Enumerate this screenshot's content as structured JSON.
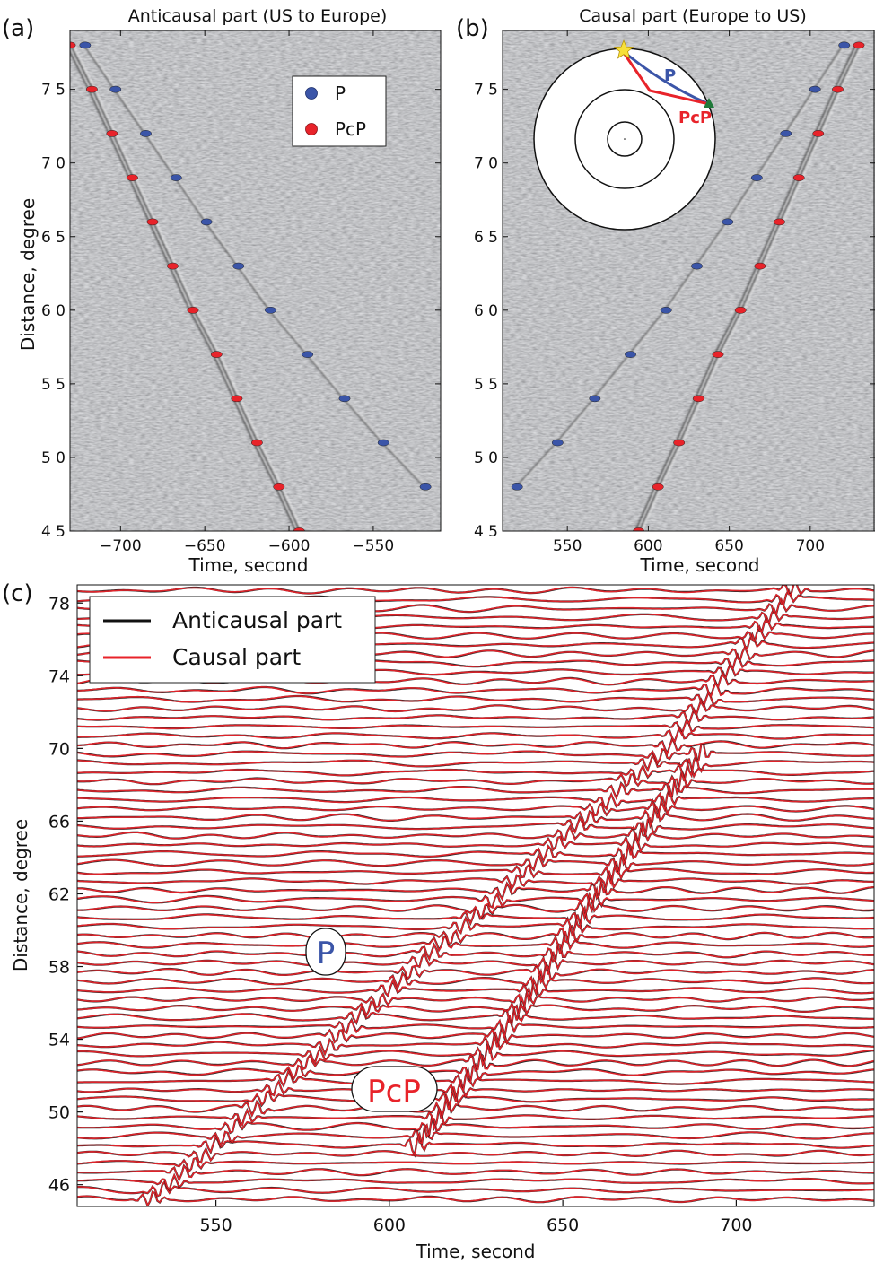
{
  "chart_data": [
    {
      "panel_label": "(a)",
      "type": "scatter",
      "title": "Anticausal part (US to Europe)",
      "xlabel": "Time, second",
      "ylabel": "Distance, degree",
      "xlim": [
        -730,
        -510
      ],
      "ylim": [
        45,
        79
      ],
      "xticks": [
        "-700",
        "-650",
        "-600",
        "-550"
      ],
      "yticks": [
        "45",
        "50",
        "55",
        "60",
        "65",
        "70",
        "75"
      ],
      "background": "grayscale noise image with two oblique phase arrivals",
      "legend": {
        "position": "top-right",
        "entries": [
          "P",
          "PcP"
        ]
      },
      "series": [
        {
          "name": "P",
          "color": "#3b55a8",
          "points": [
            [
              -721,
              78
            ],
            [
              -703,
              75
            ],
            [
              -685,
              72
            ],
            [
              -667,
              69
            ],
            [
              -649,
              66
            ],
            [
              -630,
              63
            ],
            [
              -611,
              60
            ],
            [
              -589,
              57
            ],
            [
              -567,
              54
            ],
            [
              -544,
              51
            ],
            [
              -519,
              48
            ]
          ]
        },
        {
          "name": "PcP",
          "color": "#e8232a",
          "points": [
            [
              -730,
              78
            ],
            [
              -717,
              75
            ],
            [
              -705,
              72
            ],
            [
              -693,
              69
            ],
            [
              -681,
              66
            ],
            [
              -669,
              63
            ],
            [
              -657,
              60
            ],
            [
              -643,
              57
            ],
            [
              -631,
              54
            ],
            [
              -619,
              51
            ],
            [
              -606,
              48
            ],
            [
              -594,
              45
            ]
          ]
        }
      ]
    },
    {
      "panel_label": "(b)",
      "type": "scatter",
      "title": "Causal part (Europe to US)",
      "xlabel": "Time, second",
      "ylabel": "",
      "xlim": [
        510,
        740
      ],
      "ylim": [
        45,
        79
      ],
      "xticks": [
        "550",
        "600",
        "650",
        "700"
      ],
      "yticks": [
        "45",
        "50",
        "55",
        "60",
        "65",
        "70",
        "75"
      ],
      "background": "grayscale noise image with two oblique phase arrivals",
      "inset": {
        "labels": [
          "P",
          "PcP"
        ],
        "description": "Earth cross-section with P and PcP ray paths"
      },
      "series": [
        {
          "name": "P",
          "color": "#3b55a8",
          "points": [
            [
              519,
              48
            ],
            [
              544,
              51
            ],
            [
              567,
              54
            ],
            [
              589,
              57
            ],
            [
              611,
              60
            ],
            [
              630,
              63
            ],
            [
              649,
              66
            ],
            [
              667,
              69
            ],
            [
              685,
              72
            ],
            [
              703,
              75
            ],
            [
              721,
              78
            ]
          ]
        },
        {
          "name": "PcP",
          "color": "#e8232a",
          "points": [
            [
              594,
              45
            ],
            [
              606,
              48
            ],
            [
              619,
              51
            ],
            [
              631,
              54
            ],
            [
              643,
              57
            ],
            [
              657,
              60
            ],
            [
              669,
              63
            ],
            [
              681,
              66
            ],
            [
              693,
              69
            ],
            [
              705,
              72
            ],
            [
              717,
              75
            ],
            [
              730,
              78
            ]
          ]
        }
      ]
    },
    {
      "panel_label": "(c)",
      "type": "line",
      "title": "",
      "xlabel": "Time, second",
      "ylabel": "Distance, degree",
      "xlim": [
        510,
        740
      ],
      "ylim": [
        44.8,
        79
      ],
      "xticks": [
        "550",
        "600",
        "650",
        "700"
      ],
      "yticks": [
        "46",
        "50",
        "54",
        "58",
        "62",
        "66",
        "70",
        "74",
        "78"
      ],
      "legend": {
        "position": "top-left",
        "entries": [
          "Anticausal part",
          "Causal part"
        ]
      },
      "series": [
        {
          "name": "Anticausal part",
          "color": "#111111"
        },
        {
          "name": "Causal part",
          "color": "#e8232a"
        }
      ],
      "annotations": [
        {
          "text": "P",
          "color": "#3b55a8"
        },
        {
          "text": "PcP",
          "color": "#e8232a"
        }
      ],
      "arrivals": {
        "P": [
          [
            566,
            51
          ],
          [
            620,
            60
          ],
          [
            680,
            70
          ],
          [
            705,
            76
          ]
        ],
        "PcP": [
          [
            611,
            49
          ],
          [
            635,
            55
          ],
          [
            660,
            62
          ],
          [
            683,
            68
          ]
        ]
      }
    }
  ]
}
